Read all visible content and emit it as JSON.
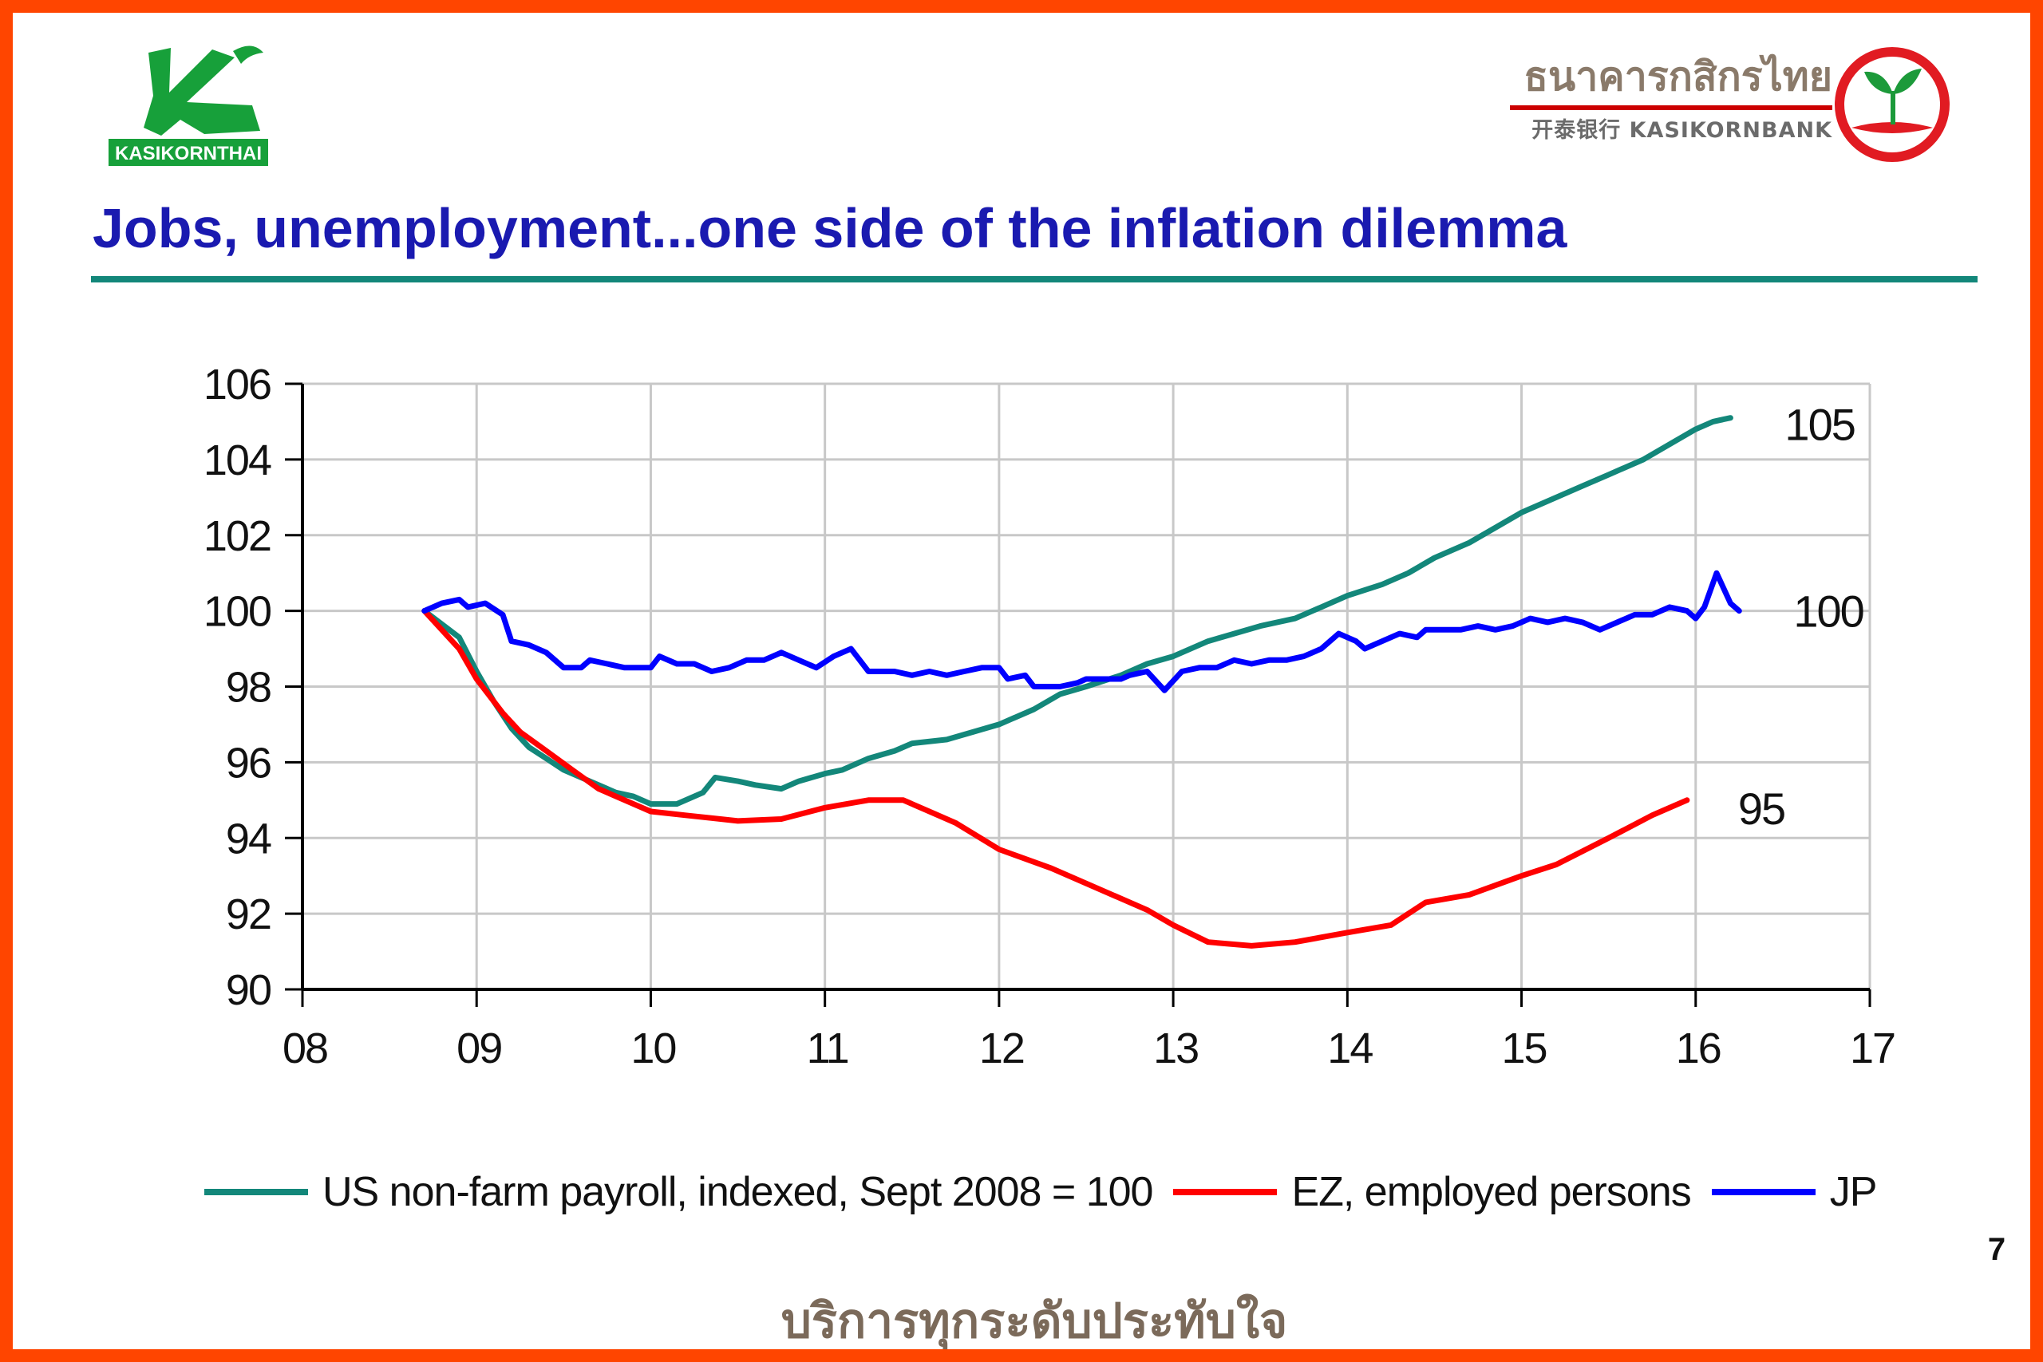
{
  "header": {
    "left_logo_text": "KASIKORNTHAI",
    "bank_name_thai": "ธนาคารกสิกรไทย",
    "bank_name_sub": "开泰银行 KASIKORNBANK"
  },
  "title": "Jobs, unemployment...one side of the inflation dilemma",
  "page_number": "7",
  "slogan": "บริการทุกระดับประทับใจ",
  "colors": {
    "frame": "#FF4500",
    "title": "#1a1ab0",
    "rule": "#13877a",
    "us": "#13877a",
    "ez": "#ff0000",
    "jp": "#0000ff"
  },
  "chart_data": {
    "type": "line",
    "title": "",
    "xlabel": "",
    "ylabel": "",
    "xlim": [
      2008,
      2017
    ],
    "ylim": [
      90,
      106
    ],
    "x_ticks": [
      {
        "value": 2008,
        "label": "08"
      },
      {
        "value": 2009,
        "label": "09"
      },
      {
        "value": 2010,
        "label": "10"
      },
      {
        "value": 2011,
        "label": "11"
      },
      {
        "value": 2012,
        "label": "12"
      },
      {
        "value": 2013,
        "label": "13"
      },
      {
        "value": 2014,
        "label": "14"
      },
      {
        "value": 2015,
        "label": "15"
      },
      {
        "value": 2016,
        "label": "16"
      },
      {
        "value": 2017,
        "label": "17"
      }
    ],
    "y_ticks": [
      90,
      92,
      94,
      96,
      98,
      100,
      102,
      104,
      106
    ],
    "grid": true,
    "legend_position": "bottom",
    "series": [
      {
        "key": "us",
        "name": "US non-farm payroll, indexed, Sept 2008 = 100",
        "color": "#13877a",
        "end_label": "105",
        "points": [
          [
            2008.7,
            100.0
          ],
          [
            2008.9,
            99.3
          ],
          [
            2009.0,
            98.4
          ],
          [
            2009.1,
            97.6
          ],
          [
            2009.2,
            96.9
          ],
          [
            2009.3,
            96.4
          ],
          [
            2009.4,
            96.1
          ],
          [
            2009.5,
            95.8
          ],
          [
            2009.6,
            95.6
          ],
          [
            2009.7,
            95.4
          ],
          [
            2009.8,
            95.2
          ],
          [
            2009.9,
            95.1
          ],
          [
            2010.0,
            94.9
          ],
          [
            2010.15,
            94.9
          ],
          [
            2010.3,
            95.2
          ],
          [
            2010.37,
            95.6
          ],
          [
            2010.5,
            95.5
          ],
          [
            2010.6,
            95.4
          ],
          [
            2010.75,
            95.3
          ],
          [
            2010.85,
            95.5
          ],
          [
            2011.0,
            95.7
          ],
          [
            2011.1,
            95.8
          ],
          [
            2011.25,
            96.1
          ],
          [
            2011.4,
            96.3
          ],
          [
            2011.5,
            96.5
          ],
          [
            2011.7,
            96.6
          ],
          [
            2011.85,
            96.8
          ],
          [
            2012.0,
            97.0
          ],
          [
            2012.2,
            97.4
          ],
          [
            2012.35,
            97.8
          ],
          [
            2012.5,
            98.0
          ],
          [
            2012.7,
            98.3
          ],
          [
            2012.85,
            98.6
          ],
          [
            2013.0,
            98.8
          ],
          [
            2013.2,
            99.2
          ],
          [
            2013.35,
            99.4
          ],
          [
            2013.5,
            99.6
          ],
          [
            2013.7,
            99.8
          ],
          [
            2013.85,
            100.1
          ],
          [
            2014.0,
            100.4
          ],
          [
            2014.2,
            100.7
          ],
          [
            2014.35,
            101.0
          ],
          [
            2014.5,
            101.4
          ],
          [
            2014.7,
            101.8
          ],
          [
            2014.85,
            102.2
          ],
          [
            2015.0,
            102.6
          ],
          [
            2015.2,
            103.0
          ],
          [
            2015.35,
            103.3
          ],
          [
            2015.5,
            103.6
          ],
          [
            2015.7,
            104.0
          ],
          [
            2015.85,
            104.4
          ],
          [
            2016.0,
            104.8
          ],
          [
            2016.1,
            105.0
          ],
          [
            2016.2,
            105.1
          ]
        ]
      },
      {
        "key": "ez",
        "name": "EZ, employed persons",
        "color": "#ff0000",
        "end_label": "95",
        "points": [
          [
            2008.7,
            100.0
          ],
          [
            2008.9,
            99.0
          ],
          [
            2009.0,
            98.2
          ],
          [
            2009.15,
            97.3
          ],
          [
            2009.25,
            96.8
          ],
          [
            2009.4,
            96.3
          ],
          [
            2009.55,
            95.8
          ],
          [
            2009.7,
            95.3
          ],
          [
            2009.85,
            95.0
          ],
          [
            2010.0,
            94.7
          ],
          [
            2010.2,
            94.6
          ],
          [
            2010.5,
            94.45
          ],
          [
            2010.75,
            94.5
          ],
          [
            2011.0,
            94.8
          ],
          [
            2011.25,
            95.0
          ],
          [
            2011.45,
            95.0
          ],
          [
            2011.75,
            94.4
          ],
          [
            2012.0,
            93.7
          ],
          [
            2012.3,
            93.2
          ],
          [
            2012.6,
            92.6
          ],
          [
            2012.85,
            92.1
          ],
          [
            2013.0,
            91.7
          ],
          [
            2013.2,
            91.25
          ],
          [
            2013.45,
            91.15
          ],
          [
            2013.7,
            91.25
          ],
          [
            2014.0,
            91.5
          ],
          [
            2014.25,
            91.7
          ],
          [
            2014.45,
            92.3
          ],
          [
            2014.7,
            92.5
          ],
          [
            2015.0,
            93.0
          ],
          [
            2015.2,
            93.3
          ],
          [
            2015.5,
            94.0
          ],
          [
            2015.75,
            94.6
          ],
          [
            2015.95,
            95.0
          ]
        ]
      },
      {
        "key": "jp",
        "name": "JP",
        "color": "#0000ff",
        "end_label": "100",
        "points": [
          [
            2008.7,
            100.0
          ],
          [
            2008.8,
            100.2
          ],
          [
            2008.9,
            100.3
          ],
          [
            2008.95,
            100.1
          ],
          [
            2009.05,
            100.2
          ],
          [
            2009.15,
            99.9
          ],
          [
            2009.2,
            99.2
          ],
          [
            2009.3,
            99.1
          ],
          [
            2009.4,
            98.9
          ],
          [
            2009.5,
            98.5
          ],
          [
            2009.6,
            98.5
          ],
          [
            2009.65,
            98.7
          ],
          [
            2009.75,
            98.6
          ],
          [
            2009.85,
            98.5
          ],
          [
            2010.0,
            98.5
          ],
          [
            2010.05,
            98.8
          ],
          [
            2010.15,
            98.6
          ],
          [
            2010.25,
            98.6
          ],
          [
            2010.35,
            98.4
          ],
          [
            2010.45,
            98.5
          ],
          [
            2010.55,
            98.7
          ],
          [
            2010.65,
            98.7
          ],
          [
            2010.75,
            98.9
          ],
          [
            2010.85,
            98.7
          ],
          [
            2010.95,
            98.5
          ],
          [
            2011.05,
            98.8
          ],
          [
            2011.15,
            99.0
          ],
          [
            2011.25,
            98.4
          ],
          [
            2011.4,
            98.4
          ],
          [
            2011.5,
            98.3
          ],
          [
            2011.6,
            98.4
          ],
          [
            2011.7,
            98.3
          ],
          [
            2011.8,
            98.4
          ],
          [
            2011.9,
            98.5
          ],
          [
            2012.0,
            98.5
          ],
          [
            2012.05,
            98.2
          ],
          [
            2012.15,
            98.3
          ],
          [
            2012.2,
            98.0
          ],
          [
            2012.35,
            98.0
          ],
          [
            2012.45,
            98.1
          ],
          [
            2012.5,
            98.2
          ],
          [
            2012.6,
            98.2
          ],
          [
            2012.7,
            98.2
          ],
          [
            2012.75,
            98.3
          ],
          [
            2012.85,
            98.4
          ],
          [
            2012.95,
            97.9
          ],
          [
            2013.05,
            98.4
          ],
          [
            2013.15,
            98.5
          ],
          [
            2013.25,
            98.5
          ],
          [
            2013.35,
            98.7
          ],
          [
            2013.45,
            98.6
          ],
          [
            2013.55,
            98.7
          ],
          [
            2013.65,
            98.7
          ],
          [
            2013.75,
            98.8
          ],
          [
            2013.85,
            99.0
          ],
          [
            2013.95,
            99.4
          ],
          [
            2014.05,
            99.2
          ],
          [
            2014.1,
            99.0
          ],
          [
            2014.2,
            99.2
          ],
          [
            2014.3,
            99.4
          ],
          [
            2014.4,
            99.3
          ],
          [
            2014.45,
            99.5
          ],
          [
            2014.55,
            99.5
          ],
          [
            2014.65,
            99.5
          ],
          [
            2014.75,
            99.6
          ],
          [
            2014.85,
            99.5
          ],
          [
            2014.95,
            99.6
          ],
          [
            2015.05,
            99.8
          ],
          [
            2015.15,
            99.7
          ],
          [
            2015.25,
            99.8
          ],
          [
            2015.35,
            99.7
          ],
          [
            2015.45,
            99.5
          ],
          [
            2015.55,
            99.7
          ],
          [
            2015.65,
            99.9
          ],
          [
            2015.75,
            99.9
          ],
          [
            2015.85,
            100.1
          ],
          [
            2015.95,
            100.0
          ],
          [
            2016.0,
            99.8
          ],
          [
            2016.05,
            100.1
          ],
          [
            2016.12,
            101.0
          ],
          [
            2016.2,
            100.2
          ],
          [
            2016.25,
            100.0
          ]
        ]
      }
    ]
  }
}
